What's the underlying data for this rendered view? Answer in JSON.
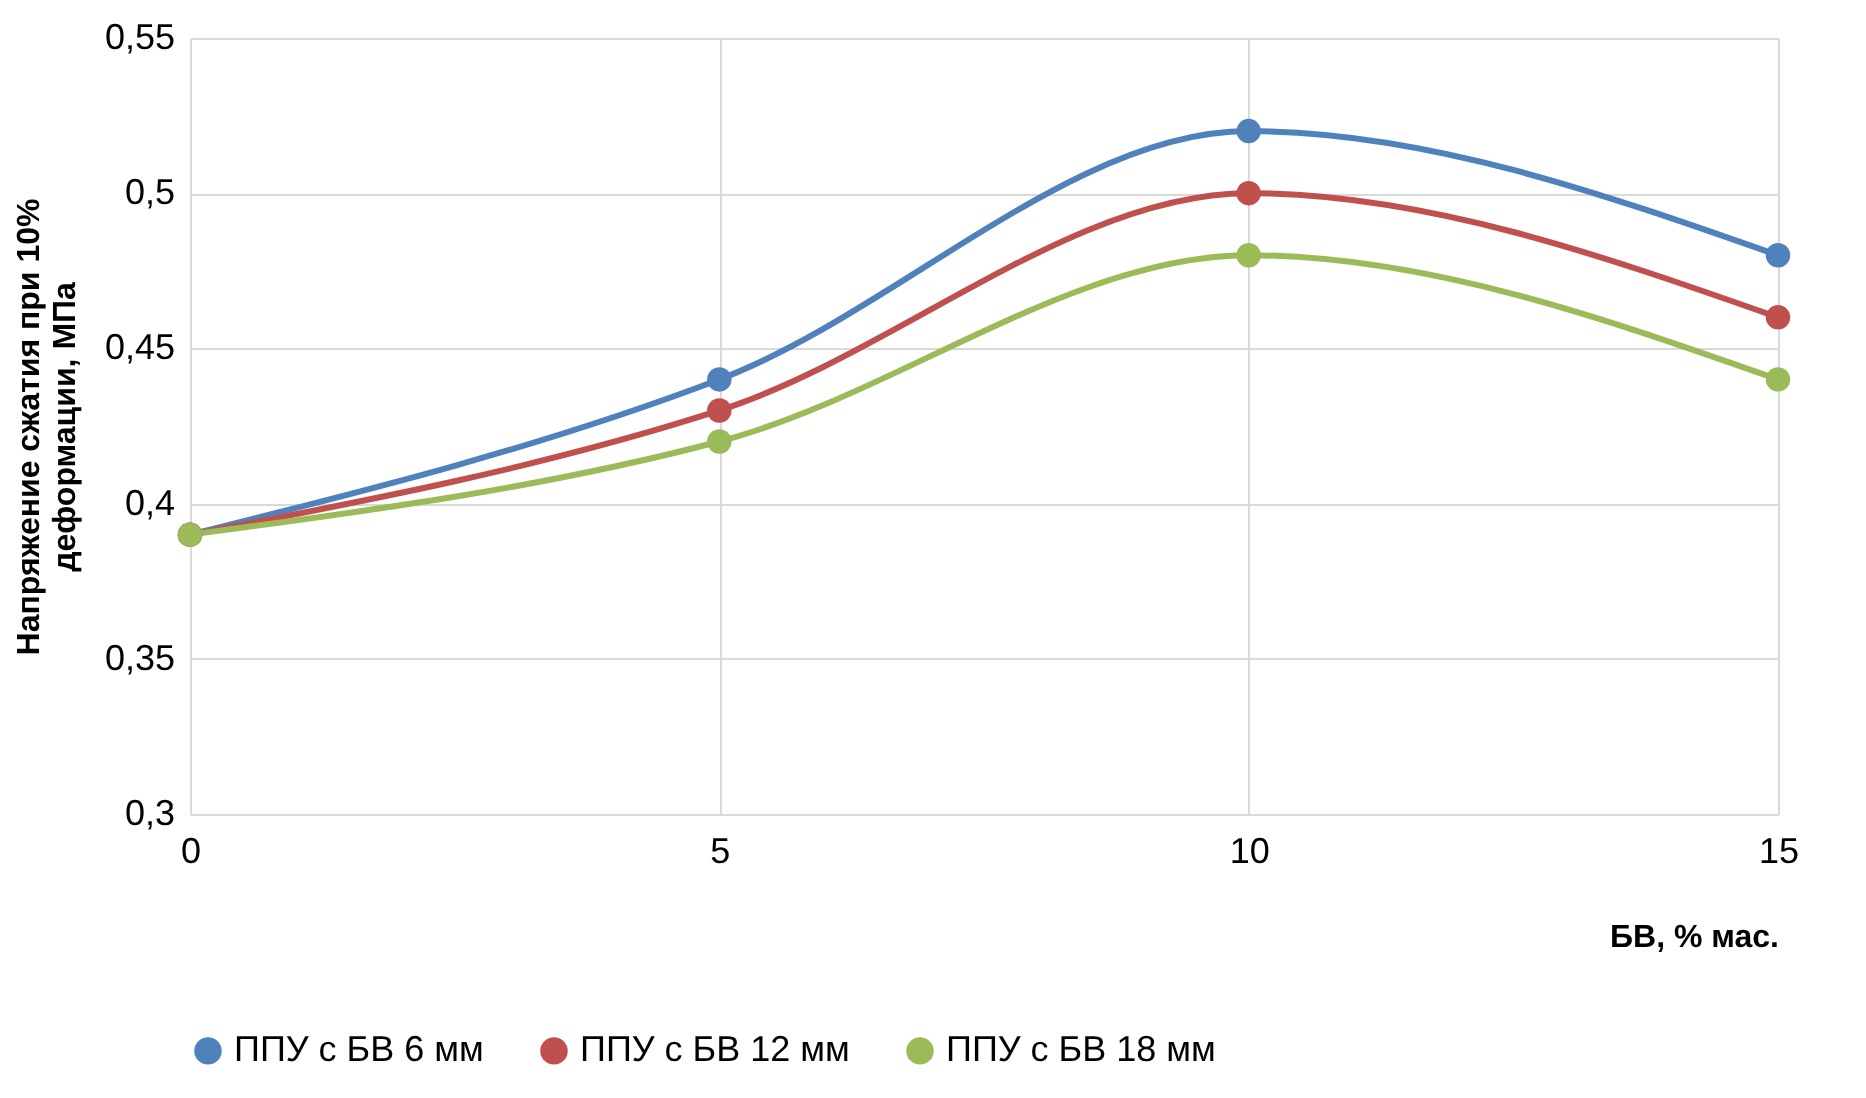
{
  "chart_data": {
    "type": "line",
    "xlabel": "БВ, % мас.",
    "ylabel": "Напряжение сжатия при 10%\nдеформации, МПа",
    "x": [
      0,
      5,
      10,
      15
    ],
    "series": [
      {
        "name": "ППУ с  БВ 6 мм",
        "color": "#4f81bd",
        "values": [
          0.39,
          0.44,
          0.52,
          0.48
        ]
      },
      {
        "name": "ППУ  с БВ 12 мм",
        "color": "#c0504d",
        "values": [
          0.39,
          0.43,
          0.5,
          0.46
        ]
      },
      {
        "name": "ППУ с  БВ 18 мм",
        "color": "#9bbb59",
        "values": [
          0.39,
          0.42,
          0.48,
          0.44
        ]
      }
    ],
    "xlim": [
      0,
      15
    ],
    "xticks": [
      0,
      5,
      10,
      15
    ],
    "ylim": [
      0.3,
      0.55
    ],
    "yticks": [
      {
        "value": 0.3,
        "label": "0,3"
      },
      {
        "value": 0.35,
        "label": "0,35"
      },
      {
        "value": 0.4,
        "label": "0,4"
      },
      {
        "value": 0.45,
        "label": "0,45"
      },
      {
        "value": 0.5,
        "label": "0,5"
      },
      {
        "value": 0.55,
        "label": "0,55"
      }
    ],
    "grid": true,
    "legend": "bottom",
    "marker": "circle",
    "line_style": "solid"
  }
}
